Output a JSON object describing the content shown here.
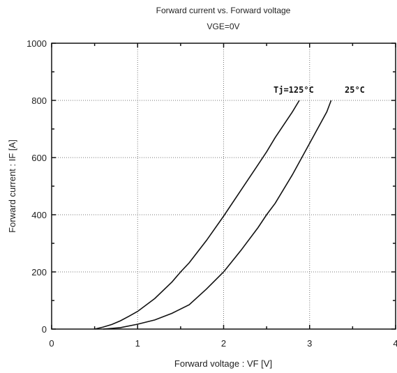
{
  "chart_data": {
    "type": "line",
    "title": "Forward current vs. Forward voltage",
    "subtitle": "VGE=0V",
    "xlabel": "Forward voltage : VF [V]",
    "ylabel": "Forward current : IF [A]",
    "xlim": [
      0,
      4
    ],
    "ylim": [
      0,
      1000
    ],
    "xticks": [
      0,
      1,
      2,
      3,
      4
    ],
    "yticks": [
      0,
      200,
      400,
      600,
      800,
      1000
    ],
    "grid": true,
    "series": [
      {
        "name": "Tj=125°C",
        "x": [
          0.5,
          0.6,
          0.7,
          0.8,
          0.9,
          1.0,
          1.2,
          1.4,
          1.5,
          1.6,
          1.8,
          2.0,
          2.2,
          2.4,
          2.5,
          2.6,
          2.8,
          2.88
        ],
        "y": [
          0,
          7,
          16,
          29,
          45,
          62,
          107,
          165,
          200,
          232,
          310,
          395,
          485,
          575,
          620,
          670,
          760,
          800
        ]
      },
      {
        "name": "25°C",
        "x": [
          0.6,
          0.8,
          1.0,
          1.2,
          1.4,
          1.6,
          1.8,
          2.0,
          2.2,
          2.4,
          2.5,
          2.6,
          2.8,
          3.0,
          3.2,
          3.25
        ],
        "y": [
          0,
          5,
          17,
          32,
          55,
          85,
          140,
          200,
          275,
          355,
          400,
          440,
          540,
          650,
          760,
          800
        ]
      }
    ]
  }
}
